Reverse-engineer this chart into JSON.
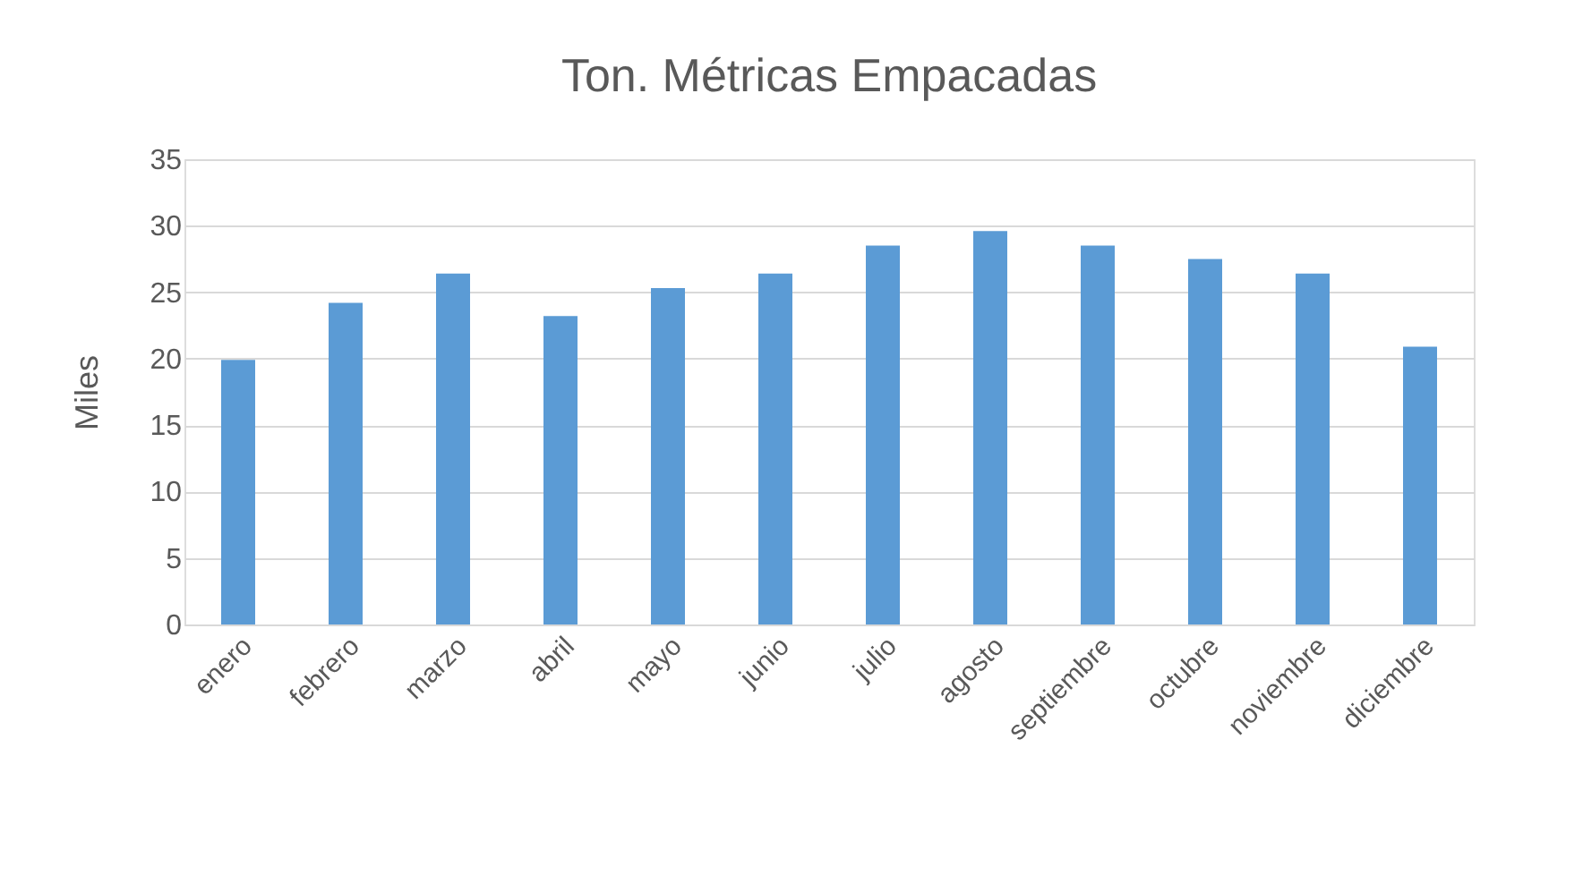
{
  "chart_data": {
    "type": "bar",
    "title": "Ton. Métricas Empacadas",
    "ylabel": "Miles",
    "categories": [
      "enero",
      "febrero",
      "marzo",
      "abril",
      "mayo",
      "junio",
      "julio",
      "agosto",
      "septiembre",
      "octubre",
      "noviembre",
      "diciembre"
    ],
    "series": [
      {
        "color": "#5b9bd5",
        "values": [
          19.9,
          24.2,
          26.4,
          23.2,
          25.3,
          26.4,
          28.5,
          29.6,
          28.5,
          27.5,
          26.4,
          20.9
        ]
      }
    ],
    "ylim": [
      0,
      35
    ],
    "yticks": [
      0,
      5,
      10,
      15,
      20,
      25,
      30,
      35
    ],
    "grid": "y",
    "legend": false
  }
}
